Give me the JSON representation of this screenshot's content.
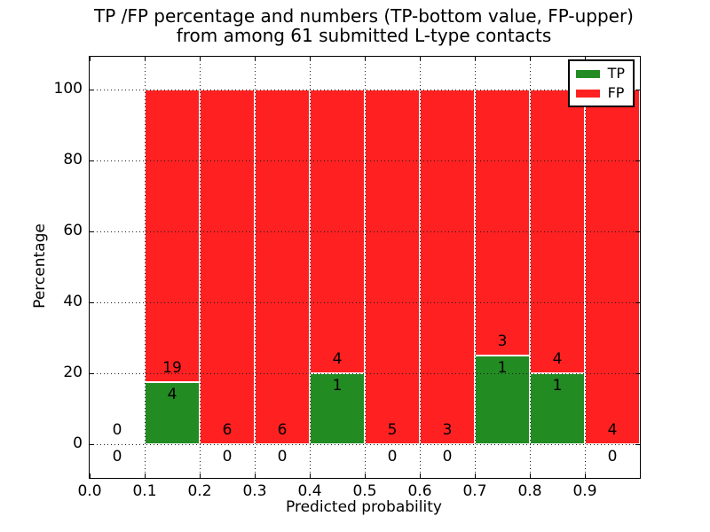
{
  "title": {
    "line1": "TP /FP percentage and numbers (TP-bottom value, FP-upper)",
    "line2": "from among 61 submitted L-type contacts"
  },
  "axes": {
    "x_label": "Predicted probability",
    "y_label": "Percentage",
    "x_tick_labels": [
      "0.0",
      "0.1",
      "0.2",
      "0.3",
      "0.4",
      "0.5",
      "0.6",
      "0.7",
      "0.8",
      "0.9"
    ],
    "y_tick_labels": [
      "0",
      "20",
      "40",
      "60",
      "80",
      "100"
    ]
  },
  "legend": {
    "items": [
      {
        "label": "TP",
        "color": "#228b22"
      },
      {
        "label": "FP",
        "color": "#ff2121"
      }
    ]
  },
  "colors": {
    "tp_green": "#228b22",
    "fp_red": "#ff2121",
    "grid": "#1a1a1a",
    "frame": "#000000",
    "background": "#ffffff"
  },
  "chart_data": {
    "type": "bar",
    "stacked": true,
    "normalized_to_percent": true,
    "title": "TP /FP percentage and numbers (TP-bottom value, FP-upper) from among 61 submitted L-type contacts",
    "xlabel": "Predicted probability",
    "ylabel": "Percentage",
    "total_submitted_contacts": 61,
    "xlim": [
      0.0,
      1.0
    ],
    "ylim_pct": [
      0,
      100
    ],
    "bin_width": 0.1,
    "bin_starts": [
      0.0,
      0.1,
      0.2,
      0.3,
      0.4,
      0.5,
      0.6,
      0.7,
      0.8,
      0.9
    ],
    "series": [
      {
        "name": "TP",
        "color": "#228b22",
        "counts": [
          0,
          4,
          0,
          0,
          1,
          0,
          0,
          1,
          1,
          0
        ]
      },
      {
        "name": "FP",
        "color": "#ff2121",
        "counts": [
          0,
          19,
          6,
          6,
          4,
          5,
          3,
          3,
          4,
          4
        ]
      }
    ],
    "tp_percent_by_bin": [
      null,
      17.4,
      0,
      0,
      20,
      0,
      0,
      25,
      20,
      0
    ],
    "bar_top_percent": 100,
    "grid": "dotted",
    "legend_position": "upper-right"
  }
}
